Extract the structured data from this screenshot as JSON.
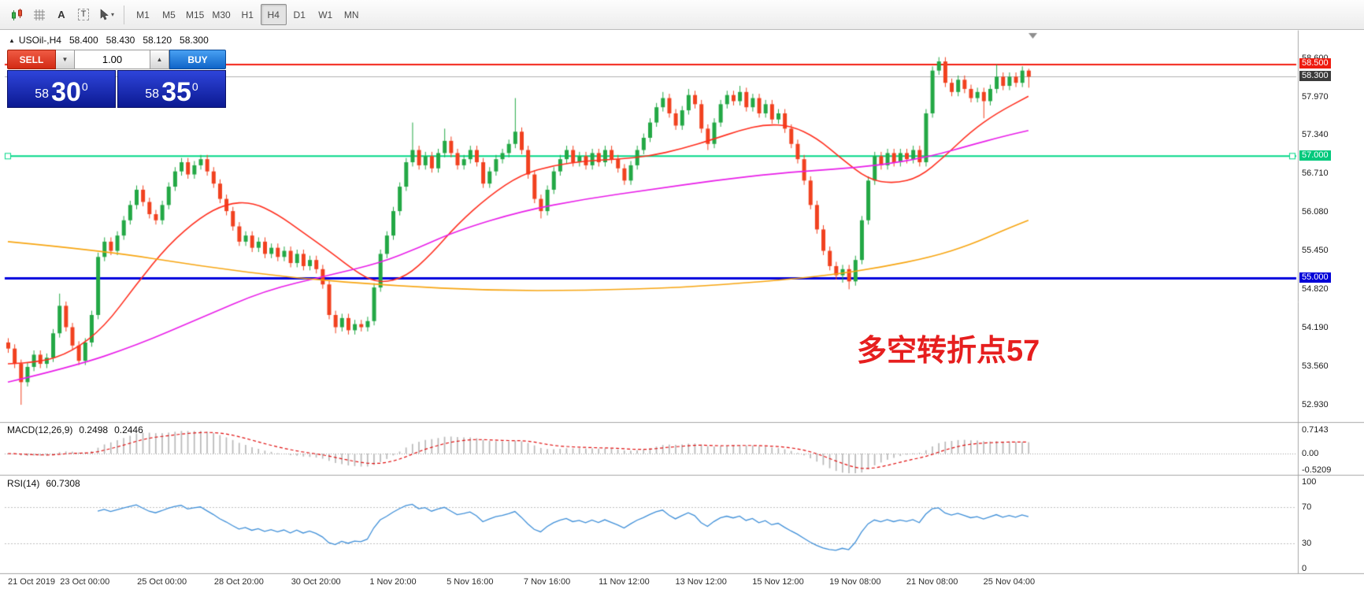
{
  "toolbar": {
    "icons": [
      {
        "name": "chart-style-icon"
      },
      {
        "name": "grid-icon"
      },
      {
        "name": "text-tool-icon",
        "glyph": "A"
      },
      {
        "name": "textbox-tool-icon",
        "glyph": "T"
      },
      {
        "name": "cursor-tool-icon",
        "caret": "▾"
      }
    ],
    "timeframes": [
      "M1",
      "M5",
      "M15",
      "M30",
      "H1",
      "H4",
      "D1",
      "W1",
      "MN"
    ],
    "active_timeframe": "H4"
  },
  "info_line": {
    "marker": "▲",
    "symbol": "USOil-,H4",
    "open": "58.400",
    "high": "58.430",
    "low": "58.120",
    "close": "58.300"
  },
  "trade_panel": {
    "sell_label": "SELL",
    "buy_label": "BUY",
    "volume": "1.00",
    "vol_down_glyph": "▼",
    "vol_up_glyph": "▲",
    "sell_price": {
      "prefix": "58",
      "main": "30",
      "sup": "0"
    },
    "buy_price": {
      "prefix": "58",
      "main": "35",
      "sup": "0"
    }
  },
  "chart_data": {
    "type": "candlestick",
    "symbol": "USOil-",
    "timeframe": "H4",
    "title": "USOil- H4 chart",
    "last_bar": {
      "open": 58.4,
      "high": 58.43,
      "low": 58.12,
      "close": 58.3
    },
    "up_color": "#23a845",
    "down_color": "#f1411f",
    "price_ticks": [
      "58.600",
      "57.970",
      "57.340",
      "56.710",
      "56.080",
      "55.450",
      "54.820",
      "54.190",
      "53.560",
      "52.930"
    ],
    "badges": [
      {
        "value": "58.500",
        "price": 58.5,
        "bg": "#ee1c10",
        "fg": "#ffffff"
      },
      {
        "value": "58.300",
        "price": 58.3,
        "bg": "#3b3b3b",
        "fg": "#ffffff"
      },
      {
        "value": "57.000",
        "price": 57.0,
        "bg": "#00c97c",
        "fg": "#ffffff"
      },
      {
        "value": "55.000",
        "price": 55.0,
        "bg": "#0000d8",
        "fg": "#ffffff"
      }
    ],
    "hlines": [
      {
        "price": 58.5,
        "color": "#f21d10",
        "width": 2
      },
      {
        "price": 57.0,
        "color": "#00d887",
        "width": 2,
        "handles": true
      },
      {
        "price": 55.0,
        "color": "#0000dd",
        "width": 3
      }
    ],
    "bid_line": {
      "price": 58.3,
      "color": "#b0b0b0"
    },
    "time_labels": [
      "21 Oct 2019",
      "23 Oct 00:00",
      "25 Oct 00:00",
      "28 Oct 20:00",
      "30 Oct 20:00",
      "1 Nov 20:00",
      "5 Nov 16:00",
      "7 Nov 16:00",
      "11 Nov 12:00",
      "13 Nov 12:00",
      "15 Nov 12:00",
      "19 Nov 08:00",
      "21 Nov 08:00",
      "25 Nov 04:00"
    ],
    "candles": [
      [
        53.95,
        54.02,
        53.78,
        53.85
      ],
      [
        53.85,
        53.92,
        53.53,
        53.6
      ],
      [
        53.6,
        53.67,
        52.93,
        53.3
      ],
      [
        53.3,
        53.62,
        53.23,
        53.55
      ],
      [
        53.55,
        53.82,
        53.48,
        53.75
      ],
      [
        53.75,
        53.82,
        53.53,
        53.6
      ],
      [
        53.6,
        53.77,
        53.53,
        53.7
      ],
      [
        53.7,
        54.17,
        53.63,
        54.1
      ],
      [
        54.1,
        54.75,
        54.03,
        54.55
      ],
      [
        54.55,
        54.62,
        54.13,
        54.2
      ],
      [
        54.2,
        54.27,
        53.83,
        53.9
      ],
      [
        53.9,
        53.97,
        53.58,
        53.65
      ],
      [
        53.65,
        54.02,
        53.58,
        53.95
      ],
      [
        53.95,
        54.47,
        53.88,
        54.4
      ],
      [
        54.4,
        55.42,
        54.33,
        55.35
      ],
      [
        55.35,
        55.67,
        55.28,
        55.6
      ],
      [
        55.6,
        55.67,
        55.38,
        55.45
      ],
      [
        55.45,
        55.77,
        55.38,
        55.7
      ],
      [
        55.7,
        56.02,
        55.63,
        55.95
      ],
      [
        55.95,
        56.27,
        55.88,
        56.2
      ],
      [
        56.2,
        56.52,
        56.13,
        56.45
      ],
      [
        56.45,
        56.52,
        56.18,
        56.25
      ],
      [
        56.25,
        56.32,
        55.98,
        56.05
      ],
      [
        56.05,
        56.12,
        55.88,
        55.95
      ],
      [
        55.95,
        56.27,
        55.88,
        56.2
      ],
      [
        56.2,
        56.57,
        56.13,
        56.5
      ],
      [
        56.5,
        56.82,
        56.43,
        56.75
      ],
      [
        56.75,
        56.97,
        56.68,
        56.9
      ],
      [
        56.9,
        56.97,
        56.63,
        56.7
      ],
      [
        56.7,
        56.92,
        56.63,
        56.85
      ],
      [
        56.85,
        57.02,
        56.78,
        56.95
      ],
      [
        56.95,
        57.02,
        56.68,
        56.75
      ],
      [
        56.75,
        56.82,
        56.48,
        56.55
      ],
      [
        56.55,
        56.62,
        56.23,
        56.3
      ],
      [
        56.3,
        56.37,
        56.03,
        56.1
      ],
      [
        56.1,
        56.17,
        55.78,
        55.85
      ],
      [
        55.85,
        55.92,
        55.53,
        55.6
      ],
      [
        55.6,
        55.77,
        55.53,
        55.7
      ],
      [
        55.7,
        55.77,
        55.43,
        55.5
      ],
      [
        55.5,
        55.67,
        55.43,
        55.6
      ],
      [
        55.6,
        55.67,
        55.33,
        55.4
      ],
      [
        55.4,
        55.57,
        55.33,
        55.5
      ],
      [
        55.5,
        55.57,
        55.28,
        55.35
      ],
      [
        55.35,
        55.52,
        55.28,
        55.45
      ],
      [
        55.45,
        55.52,
        55.18,
        55.25
      ],
      [
        55.25,
        55.47,
        55.18,
        55.4
      ],
      [
        55.4,
        55.47,
        55.13,
        55.2
      ],
      [
        55.2,
        55.37,
        55.13,
        55.3
      ],
      [
        55.3,
        55.37,
        55.08,
        55.15
      ],
      [
        55.15,
        55.22,
        54.83,
        54.9
      ],
      [
        54.9,
        54.97,
        54.33,
        54.4
      ],
      [
        54.4,
        54.47,
        54.1,
        54.2
      ],
      [
        54.2,
        54.42,
        54.13,
        54.35
      ],
      [
        54.35,
        54.42,
        54.08,
        54.15
      ],
      [
        54.15,
        54.32,
        54.08,
        54.25
      ],
      [
        54.25,
        54.32,
        54.13,
        54.2
      ],
      [
        54.2,
        54.37,
        54.13,
        54.3
      ],
      [
        54.3,
        54.92,
        54.23,
        54.85
      ],
      [
        54.85,
        55.47,
        54.78,
        55.4
      ],
      [
        55.4,
        55.77,
        55.33,
        55.7
      ],
      [
        55.7,
        56.17,
        55.63,
        56.1
      ],
      [
        56.1,
        56.57,
        56.03,
        56.5
      ],
      [
        56.5,
        56.97,
        56.43,
        56.9
      ],
      [
        56.9,
        57.55,
        56.83,
        57.1
      ],
      [
        57.1,
        57.17,
        56.78,
        56.85
      ],
      [
        56.85,
        57.07,
        56.78,
        57.0
      ],
      [
        57.0,
        57.07,
        56.73,
        56.8
      ],
      [
        56.8,
        57.12,
        56.73,
        57.05
      ],
      [
        57.05,
        57.45,
        56.98,
        57.25
      ],
      [
        57.25,
        57.32,
        56.98,
        57.05
      ],
      [
        57.05,
        57.12,
        56.78,
        56.85
      ],
      [
        56.85,
        57.02,
        56.78,
        56.95
      ],
      [
        56.95,
        57.17,
        56.88,
        57.1
      ],
      [
        57.1,
        57.17,
        56.83,
        56.9
      ],
      [
        56.9,
        56.97,
        56.48,
        56.55
      ],
      [
        56.55,
        56.82,
        56.48,
        56.75
      ],
      [
        56.75,
        57.02,
        56.68,
        56.95
      ],
      [
        56.95,
        57.12,
        56.88,
        57.05
      ],
      [
        57.05,
        57.27,
        56.98,
        57.2
      ],
      [
        57.2,
        57.95,
        57.13,
        57.4
      ],
      [
        57.4,
        57.47,
        57.03,
        57.1
      ],
      [
        57.1,
        57.17,
        56.63,
        56.7
      ],
      [
        56.7,
        56.77,
        56.23,
        56.3
      ],
      [
        56.3,
        56.37,
        55.98,
        56.1
      ],
      [
        56.1,
        56.52,
        56.03,
        56.45
      ],
      [
        56.45,
        56.82,
        56.38,
        56.75
      ],
      [
        56.75,
        57.02,
        56.68,
        56.95
      ],
      [
        56.95,
        57.17,
        56.88,
        57.1
      ],
      [
        57.1,
        57.17,
        56.83,
        56.9
      ],
      [
        56.9,
        57.07,
        56.83,
        57.0
      ],
      [
        57.0,
        57.07,
        56.78,
        56.85
      ],
      [
        56.85,
        57.12,
        56.78,
        57.05
      ],
      [
        57.05,
        57.12,
        56.83,
        56.9
      ],
      [
        56.9,
        57.17,
        56.83,
        57.1
      ],
      [
        57.1,
        57.17,
        56.88,
        56.95
      ],
      [
        56.95,
        57.02,
        56.73,
        56.8
      ],
      [
        56.8,
        56.87,
        56.53,
        56.6
      ],
      [
        56.6,
        56.92,
        56.53,
        56.85
      ],
      [
        56.85,
        57.17,
        56.78,
        57.1
      ],
      [
        57.1,
        57.37,
        57.03,
        57.3
      ],
      [
        57.3,
        57.62,
        57.23,
        57.55
      ],
      [
        57.55,
        57.87,
        57.48,
        57.8
      ],
      [
        57.8,
        58.05,
        57.73,
        57.95
      ],
      [
        57.95,
        58.02,
        57.63,
        57.7
      ],
      [
        57.7,
        57.77,
        57.43,
        57.5
      ],
      [
        57.5,
        57.82,
        57.43,
        57.75
      ],
      [
        57.75,
        58.1,
        57.68,
        58.0
      ],
      [
        58.0,
        58.07,
        57.78,
        57.85
      ],
      [
        57.85,
        57.92,
        57.38,
        57.45
      ],
      [
        57.45,
        57.52,
        57.1,
        57.2
      ],
      [
        57.2,
        57.62,
        57.13,
        57.55
      ],
      [
        57.55,
        57.92,
        57.48,
        57.85
      ],
      [
        57.85,
        58.07,
        57.78,
        58.0
      ],
      [
        58.0,
        58.07,
        57.83,
        57.9
      ],
      [
        57.9,
        58.15,
        57.83,
        58.05
      ],
      [
        58.05,
        58.12,
        57.73,
        57.8
      ],
      [
        57.8,
        58.02,
        57.73,
        57.95
      ],
      [
        57.95,
        58.02,
        57.63,
        57.7
      ],
      [
        57.7,
        57.92,
        57.63,
        57.85
      ],
      [
        57.85,
        57.92,
        57.53,
        57.6
      ],
      [
        57.6,
        57.77,
        57.53,
        57.7
      ],
      [
        57.7,
        57.77,
        57.38,
        57.45
      ],
      [
        57.45,
        57.52,
        57.13,
        57.2
      ],
      [
        57.2,
        57.27,
        56.88,
        56.95
      ],
      [
        56.95,
        57.02,
        56.53,
        56.6
      ],
      [
        56.6,
        56.67,
        56.13,
        56.2
      ],
      [
        56.2,
        56.27,
        55.73,
        55.8
      ],
      [
        55.8,
        55.87,
        55.38,
        55.45
      ],
      [
        55.45,
        55.52,
        55.13,
        55.2
      ],
      [
        55.2,
        55.27,
        54.98,
        55.05
      ],
      [
        55.05,
        55.22,
        54.93,
        55.15
      ],
      [
        55.15,
        55.22,
        54.82,
        54.95
      ],
      [
        54.95,
        55.37,
        54.88,
        55.3
      ],
      [
        55.3,
        56.02,
        55.23,
        55.95
      ],
      [
        55.95,
        56.67,
        55.88,
        56.6
      ],
      [
        56.6,
        57.07,
        56.53,
        57.0
      ],
      [
        57.0,
        57.07,
        56.78,
        56.85
      ],
      [
        56.85,
        57.12,
        56.78,
        57.05
      ],
      [
        57.05,
        57.12,
        56.83,
        56.9
      ],
      [
        56.9,
        57.12,
        56.83,
        57.05
      ],
      [
        57.05,
        57.12,
        56.88,
        56.95
      ],
      [
        56.95,
        57.17,
        56.88,
        57.1
      ],
      [
        57.1,
        57.17,
        56.83,
        56.9
      ],
      [
        56.9,
        57.77,
        56.83,
        57.7
      ],
      [
        57.7,
        58.47,
        57.63,
        58.4
      ],
      [
        58.4,
        58.62,
        58.33,
        58.55
      ],
      [
        58.55,
        58.62,
        58.13,
        58.2
      ],
      [
        58.2,
        58.27,
        57.98,
        58.05
      ],
      [
        58.05,
        58.32,
        57.98,
        58.25
      ],
      [
        58.25,
        58.32,
        58.03,
        58.1
      ],
      [
        58.1,
        58.17,
        57.88,
        57.95
      ],
      [
        57.95,
        58.12,
        57.88,
        58.05
      ],
      [
        58.05,
        58.12,
        57.62,
        57.9
      ],
      [
        57.9,
        58.17,
        57.83,
        58.1
      ],
      [
        58.1,
        58.5,
        58.03,
        58.3
      ],
      [
        58.3,
        58.37,
        58.08,
        58.15
      ],
      [
        58.15,
        58.37,
        58.08,
        58.3
      ],
      [
        58.3,
        58.37,
        58.13,
        58.2
      ],
      [
        58.2,
        58.47,
        58.13,
        58.4
      ],
      [
        58.4,
        58.43,
        58.12,
        58.3
      ]
    ],
    "ma_lines": [
      {
        "name": "ma-fast-red",
        "color": "#ff2e1e",
        "points": [
          [
            0,
            53.6
          ],
          [
            5,
            53.62
          ],
          [
            10,
            53.8
          ],
          [
            15,
            54.2
          ],
          [
            20,
            54.9
          ],
          [
            25,
            55.55
          ],
          [
            30,
            56.0
          ],
          [
            34,
            56.22
          ],
          [
            38,
            56.25
          ],
          [
            42,
            56.05
          ],
          [
            46,
            55.75
          ],
          [
            50,
            55.45
          ],
          [
            55,
            55.05
          ],
          [
            58,
            54.92
          ],
          [
            62,
            55.02
          ],
          [
            66,
            55.4
          ],
          [
            70,
            55.88
          ],
          [
            75,
            56.35
          ],
          [
            80,
            56.7
          ],
          [
            85,
            56.85
          ],
          [
            90,
            56.92
          ],
          [
            95,
            56.95
          ],
          [
            100,
            57.0
          ],
          [
            105,
            57.12
          ],
          [
            110,
            57.28
          ],
          [
            114,
            57.42
          ],
          [
            118,
            57.52
          ],
          [
            122,
            57.5
          ],
          [
            126,
            57.3
          ],
          [
            130,
            56.95
          ],
          [
            134,
            56.62
          ],
          [
            138,
            56.55
          ],
          [
            142,
            56.65
          ],
          [
            146,
            57.0
          ],
          [
            150,
            57.4
          ],
          [
            154,
            57.7
          ],
          [
            159,
            57.98
          ]
        ]
      },
      {
        "name": "ma-mid-magenta",
        "color": "#e81ee8",
        "points": [
          [
            0,
            53.3
          ],
          [
            10,
            53.55
          ],
          [
            20,
            53.9
          ],
          [
            30,
            54.35
          ],
          [
            40,
            54.8
          ],
          [
            50,
            55.05
          ],
          [
            58,
            55.25
          ],
          [
            64,
            55.5
          ],
          [
            70,
            55.78
          ],
          [
            80,
            56.1
          ],
          [
            90,
            56.3
          ],
          [
            100,
            56.45
          ],
          [
            110,
            56.6
          ],
          [
            120,
            56.72
          ],
          [
            128,
            56.78
          ],
          [
            136,
            56.85
          ],
          [
            144,
            57.0
          ],
          [
            150,
            57.18
          ],
          [
            155,
            57.32
          ],
          [
            159,
            57.42
          ]
        ]
      },
      {
        "name": "ma-slow-orange",
        "color": "#f7a511",
        "points": [
          [
            0,
            55.6
          ],
          [
            15,
            55.45
          ],
          [
            30,
            55.2
          ],
          [
            45,
            55.0
          ],
          [
            60,
            54.88
          ],
          [
            75,
            54.8
          ],
          [
            90,
            54.8
          ],
          [
            105,
            54.85
          ],
          [
            118,
            54.95
          ],
          [
            128,
            55.05
          ],
          [
            136,
            55.18
          ],
          [
            144,
            55.35
          ],
          [
            150,
            55.55
          ],
          [
            155,
            55.78
          ],
          [
            159,
            55.95
          ]
        ]
      }
    ],
    "macd": {
      "name": "MACD(12,26,9)",
      "main_value": "0.2498",
      "signal_value": "0.2446",
      "params": [
        12,
        26,
        9
      ],
      "axis_labels": [
        "0.7143",
        "0.00",
        "-0.5209"
      ],
      "hist_color": "#b9b9b9",
      "signal_color": "#e01010"
    },
    "rsi": {
      "name": "RSI(14)",
      "value": "60.7308",
      "period": 14,
      "levels": [
        70,
        30
      ],
      "axis_labels": [
        "100",
        "70",
        "30",
        "0"
      ],
      "color": "#3f8fd8"
    },
    "annotation": {
      "text": "多空转折点57",
      "color": "#e61e1e"
    }
  }
}
